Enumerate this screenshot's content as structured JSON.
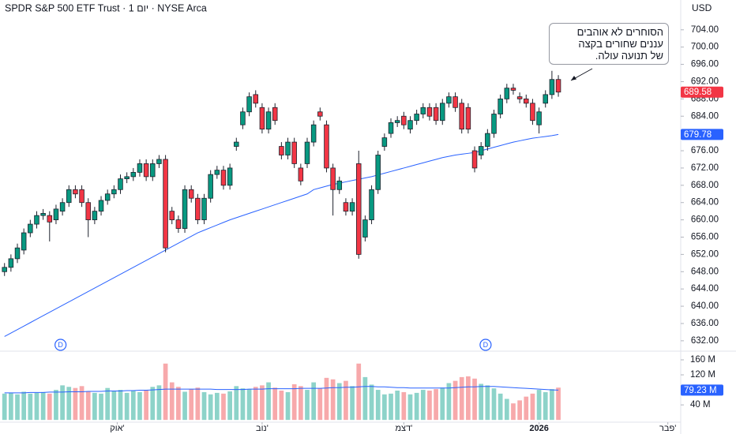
{
  "chart_data": {
    "type": "candlestick",
    "title": "SPDR S&P 500 ETF Trust · 1 יום · NYSE Arca",
    "currency": "USD",
    "annotation": [
      "הסוחרים לא אוהבים",
      "עננים שחורים בקצה",
      "של תנועה עולה."
    ],
    "xlim": [
      -0.7,
      105
    ],
    "xticks": [
      {
        "value": 17.5,
        "label": "אוק'"
      },
      {
        "value": 40,
        "label": "נוב'"
      },
      {
        "value": 62,
        "label": "דצמ'"
      },
      {
        "value": 83,
        "label": "2026"
      },
      {
        "value": 103,
        "label": "פבר'"
      }
    ],
    "ylim": [
      629.6,
      710.9
    ],
    "yticks": [
      {
        "value": 632,
        "label": "632.00"
      },
      {
        "value": 636,
        "label": "636.00"
      },
      {
        "value": 640,
        "label": "640.00"
      },
      {
        "value": 644,
        "label": "644.00"
      },
      {
        "value": 648,
        "label": "648.00"
      },
      {
        "value": 652,
        "label": "652.00"
      },
      {
        "value": 656,
        "label": "656.00"
      },
      {
        "value": 660,
        "label": "660.00"
      },
      {
        "value": 664,
        "label": "664.00"
      },
      {
        "value": 668,
        "label": "668.00"
      },
      {
        "value": 672,
        "label": "672.00"
      },
      {
        "value": 676,
        "label": "676.00"
      },
      {
        "value": 680,
        "label": "680.00"
      },
      {
        "value": 684,
        "label": "684.00"
      },
      {
        "value": 688,
        "label": "688.00"
      },
      {
        "value": 692,
        "label": "692.00"
      },
      {
        "value": 696,
        "label": "696.00"
      },
      {
        "value": 700,
        "label": "700.00"
      },
      {
        "value": 704,
        "label": "704.00"
      }
    ],
    "up_color": "#089981",
    "down_color": "#f23645",
    "ma_color": "#2962ff",
    "open": [
      648,
      649,
      651,
      653,
      657,
      659,
      661,
      661,
      660,
      662,
      664,
      667,
      667,
      664,
      660,
      662,
      664.5,
      666,
      667,
      669.5,
      670,
      671,
      673,
      670,
      673,
      674,
      662,
      660,
      658,
      667,
      665,
      660,
      665,
      670.5,
      671.5,
      668,
      677,
      682,
      685,
      689,
      686,
      681,
      686,
      677,
      675,
      678,
      672,
      673,
      678,
      685,
      682,
      672,
      667,
      664,
      662,
      673,
      656,
      660,
      667,
      677,
      680,
      682.5,
      684,
      681,
      683,
      684.5,
      686,
      686,
      683,
      687,
      688.5,
      687,
      686,
      676,
      675,
      677,
      680,
      684.5,
      688,
      690.5,
      688.5,
      688,
      687,
      682,
      687,
      689,
      692.5
    ],
    "high": [
      650,
      652,
      654.5,
      658,
      660,
      662,
      662.5,
      662,
      663.5,
      665,
      668,
      668,
      668,
      665,
      663,
      665.5,
      667,
      668,
      670.5,
      671,
      672,
      674,
      674,
      674,
      675,
      675,
      663,
      661,
      668,
      668,
      666,
      666,
      671.5,
      672.5,
      672.5,
      673,
      679,
      686,
      689.5,
      690,
      687,
      686,
      687,
      678,
      679,
      679,
      673,
      679,
      683,
      686,
      683,
      673,
      670,
      665,
      665,
      676,
      661,
      668,
      676,
      680,
      683.5,
      684,
      685,
      684,
      685.5,
      687,
      687,
      687,
      688,
      689.5,
      689.5,
      688,
      687,
      677,
      678,
      681,
      685.5,
      689,
      691.5,
      691.5,
      689.5,
      689,
      688,
      686,
      690,
      694.5,
      693.5
    ],
    "low": [
      647,
      648,
      650,
      652,
      656,
      658,
      660,
      655,
      659,
      661,
      663,
      665,
      663,
      656,
      659,
      661,
      663.5,
      665,
      666,
      668.5,
      669,
      670,
      669,
      669,
      672,
      652.5,
      659,
      657,
      657,
      664,
      659,
      659,
      664,
      669.5,
      667,
      667,
      676,
      681,
      684,
      686,
      680,
      680,
      682,
      674,
      674,
      672,
      668,
      672,
      677,
      683,
      671,
      661,
      666,
      661,
      661,
      651,
      655,
      659,
      666,
      676,
      679,
      681.5,
      681,
      680,
      682,
      683.5,
      683,
      682,
      682,
      686,
      685,
      680,
      680,
      671,
      674,
      676,
      679,
      683.5,
      687,
      689,
      687,
      686,
      682,
      680,
      686,
      688,
      688.5
    ],
    "close": [
      649,
      651,
      653.5,
      657,
      659,
      661,
      661.5,
      659.5,
      662.5,
      664,
      667,
      666,
      664,
      660,
      662,
      664.5,
      666,
      667,
      669.5,
      670,
      671,
      673,
      670,
      673,
      674,
      653.5,
      660,
      658,
      667,
      665,
      660,
      665,
      670.5,
      671.5,
      668,
      672,
      678,
      685,
      688.5,
      687,
      681,
      685,
      683,
      675,
      678,
      673,
      669,
      678,
      682,
      684,
      672,
      667,
      669,
      662,
      664,
      652,
      660,
      667,
      675,
      679,
      682.5,
      683,
      682,
      683,
      684.5,
      686,
      684,
      683,
      687,
      688.5,
      686,
      681,
      681,
      672,
      677,
      680,
      684.5,
      688,
      690.5,
      690,
      688,
      687,
      683,
      685,
      689,
      692.5,
      689.58
    ],
    "ma": [
      633,
      633.8,
      634.6,
      635.4,
      636.2,
      637,
      637.8,
      638.6,
      639.4,
      640.2,
      641,
      641.8,
      642.6,
      643.4,
      644.2,
      645,
      645.8,
      646.6,
      647.4,
      648.2,
      649,
      649.8,
      650.6,
      651.4,
      652.2,
      653,
      653.8,
      654.6,
      655.4,
      656.2,
      657,
      657.6,
      658.2,
      658.8,
      659.4,
      660,
      660.5,
      661,
      661.5,
      662,
      662.5,
      663,
      663.5,
      664,
      664.5,
      665,
      665.5,
      666,
      667,
      667.4,
      667.8,
      668.2,
      668.5,
      668.8,
      669.1,
      669.4,
      669.7,
      670,
      670.4,
      670.8,
      671.2,
      671.6,
      672,
      672.4,
      672.8,
      673.2,
      673.6,
      674,
      674.4,
      674.7,
      675,
      675.2,
      675.4,
      675.6,
      676,
      676.4,
      676.8,
      677.2,
      677.6,
      678,
      678.3,
      678.6,
      678.9,
      679.1,
      679.3,
      679.5,
      679.78
    ],
    "dividends": [
      {
        "x": 8.7,
        "label": "D"
      },
      {
        "x": 74.7,
        "label": "D"
      }
    ],
    "volume": {
      "ylim": [
        -6,
        181
      ],
      "yticks": [
        {
          "value": 40,
          "label": "40 M"
        },
        {
          "value": 120,
          "label": "120 M"
        },
        {
          "value": 160,
          "label": "160 M"
        }
      ],
      "up_color": "#8dd3c9",
      "down_color": "#f7a9ab",
      "values": [
        70,
        72,
        68,
        75,
        70,
        72,
        74,
        70,
        80,
        92,
        88,
        85,
        90,
        76,
        72,
        70,
        85,
        78,
        80,
        72,
        78,
        74,
        80,
        88,
        92,
        150,
        100,
        88,
        75,
        82,
        86,
        74,
        68,
        72,
        70,
        76,
        90,
        84,
        82,
        88,
        92,
        100,
        86,
        78,
        74,
        95,
        90,
        80,
        100,
        84,
        112,
        108,
        98,
        104,
        90,
        150,
        114,
        94,
        80,
        68,
        70,
        78,
        74,
        68,
        72,
        80,
        78,
        82,
        86,
        98,
        104,
        114,
        116,
        110,
        96,
        92,
        84,
        70,
        56,
        44,
        52,
        62,
        70,
        80,
        74,
        82,
        86
      ],
      "ma": [
        72,
        72,
        72,
        72,
        73,
        73,
        73,
        74,
        74,
        74,
        75,
        75,
        75,
        76,
        76,
        76,
        77,
        77,
        77,
        78,
        78,
        79,
        79,
        80,
        81,
        82,
        82,
        82,
        82,
        82,
        82,
        82,
        82,
        81,
        81,
        81,
        81,
        81,
        82,
        82,
        82,
        83,
        83,
        83,
        83,
        83,
        84,
        84,
        84,
        84,
        85,
        86,
        86,
        87,
        87,
        88,
        89,
        89,
        88,
        88,
        87,
        86,
        86,
        85,
        85,
        85,
        85,
        85,
        85,
        85,
        86,
        87,
        88,
        88,
        89,
        89,
        89,
        88,
        87,
        86,
        85,
        84,
        83,
        82,
        81,
        80,
        79.23
      ],
      "ma_label": "79.23 M"
    }
  }
}
